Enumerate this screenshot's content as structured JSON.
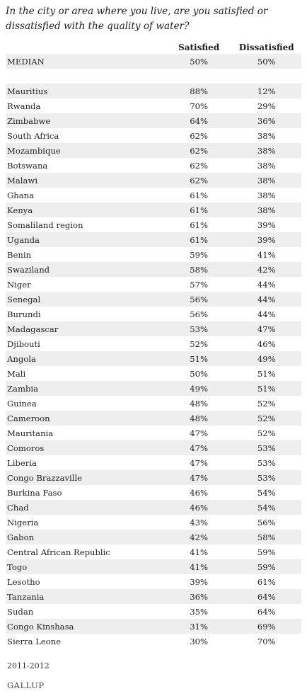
{
  "question": "In the city or area where you live, are you satisfied or dissatisfied with the quality of water?",
  "columns": {
    "satisfied": "Satisfied",
    "dissatisfied": "Dissatisfied"
  },
  "median": {
    "label": "MEDIAN",
    "satisfied": "50%",
    "dissatisfied": "50%"
  },
  "rows": [
    {
      "country": "Mauritius",
      "satisfied": "88%",
      "dissatisfied": "12%"
    },
    {
      "country": "Rwanda",
      "satisfied": "70%",
      "dissatisfied": "29%"
    },
    {
      "country": "Zimbabwe",
      "satisfied": "64%",
      "dissatisfied": "36%"
    },
    {
      "country": "South Africa",
      "satisfied": "62%",
      "dissatisfied": "38%"
    },
    {
      "country": "Mozambique",
      "satisfied": "62%",
      "dissatisfied": "38%"
    },
    {
      "country": "Botswana",
      "satisfied": "62%",
      "dissatisfied": "38%"
    },
    {
      "country": "Malawi",
      "satisfied": "62%",
      "dissatisfied": "38%"
    },
    {
      "country": "Ghana",
      "satisfied": "61%",
      "dissatisfied": "38%"
    },
    {
      "country": "Kenya",
      "satisfied": "61%",
      "dissatisfied": "38%"
    },
    {
      "country": "Somaliland region",
      "satisfied": "61%",
      "dissatisfied": "39%"
    },
    {
      "country": "Uganda",
      "satisfied": "61%",
      "dissatisfied": "39%"
    },
    {
      "country": "Benin",
      "satisfied": "59%",
      "dissatisfied": "41%"
    },
    {
      "country": "Swaziland",
      "satisfied": "58%",
      "dissatisfied": "42%"
    },
    {
      "country": "Niger",
      "satisfied": "57%",
      "dissatisfied": "44%"
    },
    {
      "country": "Senegal",
      "satisfied": "56%",
      "dissatisfied": "44%"
    },
    {
      "country": "Burundi",
      "satisfied": "56%",
      "dissatisfied": "44%"
    },
    {
      "country": "Madagascar",
      "satisfied": "53%",
      "dissatisfied": "47%"
    },
    {
      "country": "Djibouti",
      "satisfied": "52%",
      "dissatisfied": "46%"
    },
    {
      "country": "Angola",
      "satisfied": "51%",
      "dissatisfied": "49%"
    },
    {
      "country": "Mali",
      "satisfied": "50%",
      "dissatisfied": "51%"
    },
    {
      "country": "Zambia",
      "satisfied": "49%",
      "dissatisfied": "51%"
    },
    {
      "country": "Guinea",
      "satisfied": "48%",
      "dissatisfied": "52%"
    },
    {
      "country": "Cameroon",
      "satisfied": "48%",
      "dissatisfied": "52%"
    },
    {
      "country": "Mauritania",
      "satisfied": "47%",
      "dissatisfied": "52%"
    },
    {
      "country": "Comoros",
      "satisfied": "47%",
      "dissatisfied": "53%"
    },
    {
      "country": "Liberia",
      "satisfied": "47%",
      "dissatisfied": "53%"
    },
    {
      "country": "Congo Brazzaville",
      "satisfied": "47%",
      "dissatisfied": "53%"
    },
    {
      "country": "Burkina Faso",
      "satisfied": "46%",
      "dissatisfied": "54%"
    },
    {
      "country": "Chad",
      "satisfied": "46%",
      "dissatisfied": "54%"
    },
    {
      "country": "Nigeria",
      "satisfied": "43%",
      "dissatisfied": "56%"
    },
    {
      "country": "Gabon",
      "satisfied": "42%",
      "dissatisfied": "58%"
    },
    {
      "country": "Central African Republic",
      "satisfied": "41%",
      "dissatisfied": "59%"
    },
    {
      "country": "Togo",
      "satisfied": "41%",
      "dissatisfied": "59%"
    },
    {
      "country": "Lesotho",
      "satisfied": "39%",
      "dissatisfied": "61%"
    },
    {
      "country": "Tanzania",
      "satisfied": "36%",
      "dissatisfied": "64%"
    },
    {
      "country": "Sudan",
      "satisfied": "35%",
      "dissatisfied": "64%"
    },
    {
      "country": "Congo Kinshasa",
      "satisfied": "31%",
      "dissatisfied": "69%"
    },
    {
      "country": "Sierra Leone",
      "satisfied": "30%",
      "dissatisfied": "70%"
    }
  ],
  "footer": {
    "date": "2011-2012",
    "source": "GALLUP"
  }
}
